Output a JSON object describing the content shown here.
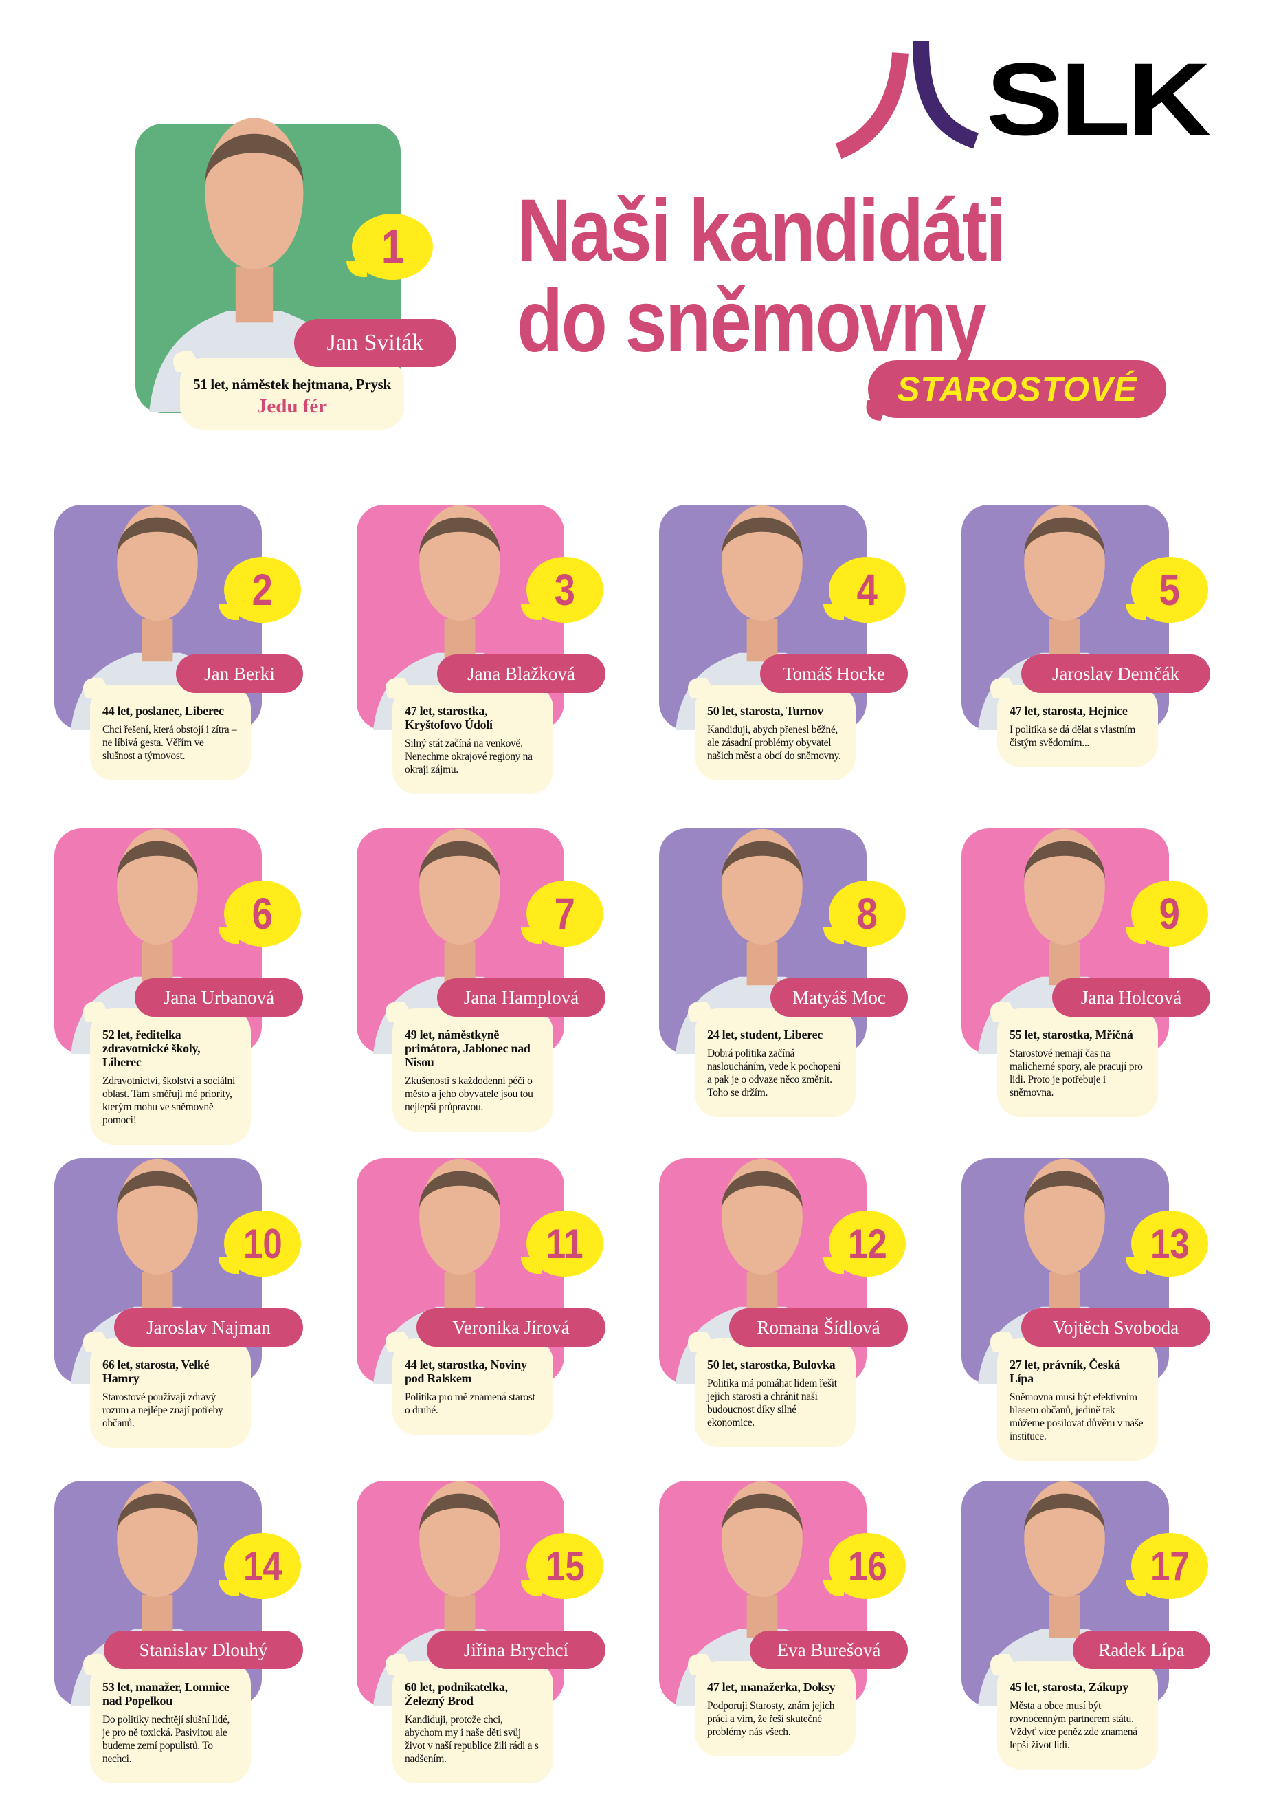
{
  "logo": {
    "text": "SLK",
    "colors": {
      "left_arc": "#cf4a74",
      "right_arc": "#42276f",
      "text": "#000000"
    }
  },
  "title": {
    "line1": "Naši kandidáti",
    "line2": "do sněmovny",
    "tag": "STAROSTOVÉ"
  },
  "colors": {
    "accent": "#cf4a74",
    "yellow": "#ffec1a",
    "cream": "#fdf7dc",
    "purple": "#9b86c4",
    "pink": "#f07ab4",
    "green": "#5fb07c"
  },
  "leader": {
    "number": "1",
    "name": "Jan Sviták",
    "info": "51 let, náměstek hejtmana, Prysk",
    "slogan": "Jedu fér",
    "bg": "green"
  },
  "candidates": [
    {
      "number": "2",
      "name": "Jan Berki",
      "info": "44 let, poslanec, Liberec",
      "quote": "Chci řešení, která obstojí i zítra – ne líbivá gesta. Věřím ve slušnost a týmovost.",
      "bg": "purple"
    },
    {
      "number": "3",
      "name": "Jana Blažková",
      "info": "47 let, starostka, Kryštofovo Údolí",
      "quote": "Silný stát začíná na venkově. Nenechme okrajové regiony na okraji zájmu.",
      "bg": "pink"
    },
    {
      "number": "4",
      "name": "Tomáš Hocke",
      "info": "50 let, starosta, Turnov",
      "quote": "Kandiduji, abych přenesl běžné, ale zásadní problémy obyvatel našich měst a obcí do sněmovny.",
      "bg": "purple"
    },
    {
      "number": "5",
      "name": "Jaroslav Demčák",
      "info": "47 let, starosta, Hejnice",
      "quote": "I politika se dá dělat s vlastním čistým svědomím...",
      "bg": "purple"
    },
    {
      "number": "6",
      "name": "Jana Urbanová",
      "info": "52 let, ředitelka zdravotnické školy, Liberec",
      "quote": "Zdravotnictví, školství a sociální oblast. Tam směřují mé priority, kterým mohu ve sněmovně pomoci!",
      "bg": "pink"
    },
    {
      "number": "7",
      "name": "Jana Hamplová",
      "info": "49 let, náměstkyně primátora, Jablonec nad Nisou",
      "quote": "Zkušenosti s každodenní péčí o město a jeho obyvatele jsou tou nejlepší průpravou.",
      "bg": "pink"
    },
    {
      "number": "8",
      "name": "Matyáš Moc",
      "info": "24 let, student, Liberec",
      "quote": "Dobrá politika začíná nasloucháním, vede k pochopení a pak je o odvaze něco změnit. Toho se držím.",
      "bg": "purple"
    },
    {
      "number": "9",
      "name": "Jana Holcová",
      "info": "55 let, starostka, Mříčná",
      "quote": "Starostové nemají čas na malicherné spory, ale pracují pro lidi. Proto je potřebuje i sněmovna.",
      "bg": "pink"
    },
    {
      "number": "10",
      "name": "Jaroslav Najman",
      "info": "66 let, starosta, Velké Hamry",
      "quote": "Starostové používají zdravý rozum a nejlépe znají potřeby občanů.",
      "bg": "purple"
    },
    {
      "number": "11",
      "name": "Veronika Jírová",
      "info": "44 let, starostka, Noviny pod Ralskem",
      "quote": "Politika pro mě znamená starost o druhé.",
      "bg": "pink"
    },
    {
      "number": "12",
      "name": "Romana Šídlová",
      "info": "50 let, starostka, Bulovka",
      "quote": "Politika má pomáhat lidem řešit jejich starosti a chránit naši budoucnost díky silné ekonomice.",
      "bg": "pink"
    },
    {
      "number": "13",
      "name": "Vojtěch Svoboda",
      "info": "27 let, právník, Česká Lípa",
      "quote": "Sněmovna musí být efektivním hlasem občanů, jedině tak můžeme posilovat důvěru v naše instituce.",
      "bg": "purple"
    },
    {
      "number": "14",
      "name": "Stanislav Dlouhý",
      "info": "53 let, manažer, Lomnice nad Popelkou",
      "quote": "Do politiky nechtějí slušní lidé, je pro ně toxická. Pasivitou ale budeme zemí populistů. To nechci.",
      "bg": "purple"
    },
    {
      "number": "15",
      "name": "Jiřina Brychcí",
      "info": "60 let, podnikatelka, Železný Brod",
      "quote": "Kandiduji, protože chci, abychom my i naše děti svůj život v naší republice žili rádi a s nadšením.",
      "bg": "pink"
    },
    {
      "number": "16",
      "name": "Eva Burešová",
      "info": "47 let, manažerka, Doksy",
      "quote": "Podporuji Starosty, znám jejich práci a vím, že řeší skutečné problémy nás všech.",
      "bg": "pink"
    },
    {
      "number": "17",
      "name": "Radek Lípa",
      "info": "45 let, starosta, Zákupy",
      "quote": "Města a obce musí být rovnocenným partnerem státu. Vždyť více peněz zde znamená lepší život lidí.",
      "bg": "purple"
    }
  ]
}
